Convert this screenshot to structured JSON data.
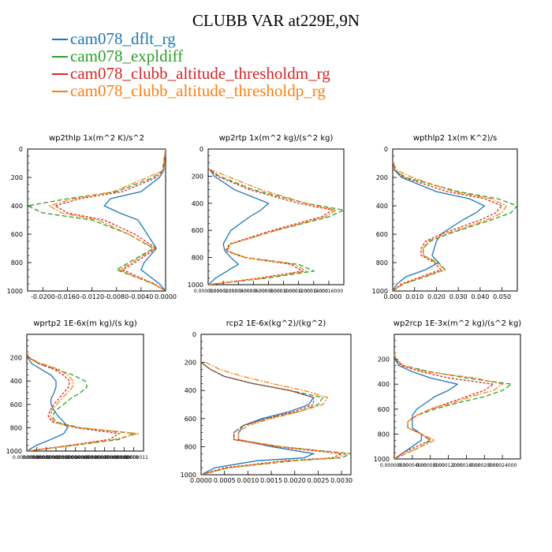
{
  "figure": {
    "title": "CLUBB VAR at229E,9N",
    "legend": [
      {
        "label": "cam078_dflt_rg",
        "color": "#1f77b4"
      },
      {
        "label": "cam078_expldiff",
        "color": "#2ca02c"
      },
      {
        "label": "cam078_clubb_altitude_thresholdm_rg",
        "color": "#d62728"
      },
      {
        "label": "cam078_clubb_altitude_thresholdp_rg",
        "color": "#ff7f0e"
      }
    ]
  },
  "chart_data": [
    {
      "type": "line",
      "title": "wp2thlp   1x(m^2 K)/s^2",
      "xlim": [
        -0.0225,
        0.0
      ],
      "ylim": [
        1000,
        0
      ],
      "xticks": [
        "-0.0200",
        "-0.0160",
        "-0.0120",
        "-0.0080",
        "-0.0040",
        "0.0000"
      ],
      "xtick_values": [
        -0.02,
        -0.016,
        -0.012,
        -0.008,
        -0.004,
        0.0
      ],
      "yticks": [
        "0",
        "200",
        "400",
        "600",
        "800",
        "1000"
      ],
      "ytick_values": [
        0,
        200,
        400,
        600,
        800,
        1000
      ],
      "y": [
        0,
        150,
        200,
        300,
        350,
        400,
        450,
        500,
        600,
        700,
        800,
        850,
        900,
        950,
        1000
      ],
      "series": [
        {
          "name": "cam078_dflt_rg",
          "values": [
            0,
            -0.0003,
            -0.001,
            -0.004,
            -0.009,
            -0.01,
            -0.0075,
            -0.0045,
            -0.003,
            -0.0015,
            -0.0035,
            -0.004,
            -0.0025,
            -0.001,
            0
          ]
        },
        {
          "name": "cam078_expldiff",
          "values": [
            0,
            -0.0005,
            -0.002,
            -0.008,
            -0.016,
            -0.0225,
            -0.02,
            -0.012,
            -0.006,
            -0.002,
            -0.006,
            -0.008,
            -0.005,
            -0.002,
            0
          ]
        },
        {
          "name": "cam078_clubb_altitude_thresholdm_rg",
          "values": [
            0,
            -0.0004,
            -0.0015,
            -0.007,
            -0.014,
            -0.018,
            -0.016,
            -0.01,
            -0.005,
            -0.0015,
            -0.005,
            -0.007,
            -0.0045,
            -0.0018,
            0
          ]
        },
        {
          "name": "cam078_clubb_altitude_thresholdp_rg",
          "values": [
            0,
            -0.0003,
            -0.003,
            -0.0085,
            -0.015,
            -0.019,
            -0.017,
            -0.011,
            -0.006,
            -0.0018,
            -0.0055,
            -0.0075,
            -0.005,
            -0.0019,
            0
          ]
        }
      ]
    },
    {
      "type": "line",
      "title": "wp2rtp   1x(m^2 kg)/(s^2 kg)",
      "xlim": [
        0.0,
        0.00018
      ],
      "ylim": [
        1000,
        0
      ],
      "xticks": [
        "0.00000000",
        "0.00002000",
        "0.00004000",
        "0.00006000",
        "0.00008000",
        "0.00010000",
        "0.00012000",
        "0.00014000",
        "0.00016000"
      ],
      "xtick_values": [
        0,
        2e-05,
        4e-05,
        6e-05,
        8e-05,
        0.0001,
        0.00012,
        0.00014,
        0.00016
      ],
      "yticks": [
        "0",
        "200",
        "400",
        "600",
        "800",
        "1000"
      ],
      "ytick_values": [
        0,
        200,
        400,
        600,
        800,
        1000
      ],
      "y": [
        150,
        200,
        300,
        400,
        450,
        500,
        600,
        700,
        750,
        800,
        850,
        900,
        950,
        1000
      ],
      "series": [
        {
          "name": "cam078_dflt_rg",
          "values": [
            2e-06,
            8e-06,
            3.5e-05,
            8e-05,
            7e-05,
            5.5e-05,
            3e-05,
            2e-05,
            2.2e-05,
            3e-05,
            4e-05,
            2.5e-05,
            1e-05,
            5e-07
          ]
        },
        {
          "name": "cam078_expldiff",
          "values": [
            2e-06,
            1.5e-05,
            6e-05,
            0.00013,
            0.00018,
            0.00016,
            9e-05,
            3e-05,
            2.5e-05,
            5e-05,
            0.00012,
            0.00014,
            8e-05,
            5e-07
          ]
        },
        {
          "name": "cam078_clubb_altitude_thresholdm_rg",
          "values": [
            2e-06,
            1.2e-05,
            5.5e-05,
            0.00012,
            0.000165,
            0.00015,
            8.5e-05,
            2.8e-05,
            2.3e-05,
            4.8e-05,
            0.00011,
            0.000125,
            7e-05,
            5e-07
          ]
        },
        {
          "name": "cam078_clubb_altitude_thresholdp_rg",
          "values": [
            2e-06,
            2.5e-05,
            7e-05,
            0.00013,
            0.00017,
            0.000155,
            9e-05,
            3e-05,
            2.4e-05,
            5e-05,
            0.000115,
            0.00013,
            7.5e-05,
            5e-07
          ]
        }
      ]
    },
    {
      "type": "line",
      "title": "wpthlp2   1x(m K^2)/s",
      "xlim": [
        0.0,
        0.057
      ],
      "ylim": [
        1000,
        0
      ],
      "xticks": [
        "0.000",
        "0.010",
        "0.020",
        "0.030",
        "0.040",
        "0.050"
      ],
      "xtick_values": [
        0,
        0.01,
        0.02,
        0.03,
        0.04,
        0.05
      ],
      "yticks": [
        "0",
        "200",
        "400",
        "600",
        "800",
        "1000"
      ],
      "ytick_values": [
        0,
        200,
        400,
        600,
        800,
        1000
      ],
      "y": [
        100,
        150,
        200,
        300,
        350,
        400,
        450,
        500,
        600,
        650,
        700,
        750,
        800,
        850,
        900,
        950,
        1000
      ],
      "series": [
        {
          "name": "cam078_dflt_rg",
          "values": [
            0.0002,
            0.001,
            0.004,
            0.02,
            0.035,
            0.042,
            0.038,
            0.032,
            0.022,
            0.02,
            0.019,
            0.018,
            0.021,
            0.015,
            0.006,
            0.002,
            0
          ]
        },
        {
          "name": "cam078_expldiff",
          "values": [
            0.0002,
            0.001,
            0.006,
            0.03,
            0.048,
            0.057,
            0.054,
            0.045,
            0.025,
            0.017,
            0.014,
            0.014,
            0.021,
            0.024,
            0.015,
            0.005,
            0
          ]
        },
        {
          "name": "cam078_clubb_altitude_thresholdm_rg",
          "values": [
            0.0002,
            0.001,
            0.005,
            0.025,
            0.042,
            0.05,
            0.047,
            0.04,
            0.022,
            0.015,
            0.013,
            0.013,
            0.019,
            0.022,
            0.013,
            0.004,
            0
          ]
        },
        {
          "name": "cam078_clubb_altitude_thresholdp_rg",
          "values": [
            0.0002,
            0.002,
            0.009,
            0.028,
            0.045,
            0.052,
            0.05,
            0.043,
            0.024,
            0.016,
            0.014,
            0.014,
            0.02,
            0.024,
            0.014,
            0.005,
            0
          ]
        }
      ]
    },
    {
      "type": "line",
      "title": "wprtp2   1E-6x(m kg)/(s kg)",
      "xlim": [
        0.0,
        1.2e-07
      ],
      "ylim": [
        1000,
        0
      ],
      "xticks": [
        "0.00000000",
        "0.00000001",
        "0.00000002",
        "0.00000003",
        "0.00000004",
        "0.00000005",
        "0.00000006",
        "0.00000007",
        "0.00000008",
        "0.00000009",
        "0.00000010",
        "0.00000011"
      ],
      "xtick_values": [
        0,
        1e-08,
        2e-08,
        3e-08,
        4e-08,
        5e-08,
        6e-08,
        7e-08,
        8e-08,
        9e-08,
        1e-07,
        1.1e-07
      ],
      "yticks": [
        "200",
        "400",
        "600",
        "800",
        "1000"
      ],
      "ytick_values": [
        200,
        400,
        600,
        800,
        1000
      ],
      "y": [
        150,
        200,
        250,
        300,
        350,
        400,
        450,
        500,
        550,
        600,
        650,
        700,
        750,
        800,
        850,
        900,
        950,
        1000
      ],
      "series": [
        {
          "name": "cam078_dflt_rg",
          "values": [
            0,
            1e-09,
            5e-09,
            1.5e-08,
            2.5e-08,
            3e-08,
            3e-08,
            2.8e-08,
            2.5e-08,
            2.5e-08,
            2.8e-08,
            3.2e-08,
            3.8e-08,
            4.2e-08,
            3.8e-08,
            2.5e-08,
            1e-08,
            0
          ]
        },
        {
          "name": "cam078_expldiff",
          "values": [
            0,
            2e-09,
            1.2e-08,
            3e-08,
            4.8e-08,
            6e-08,
            6.2e-08,
            5.5e-08,
            4.5e-08,
            3.8e-08,
            3e-08,
            2.6e-08,
            3e-08,
            5.5e-08,
            1.1e-07,
            9.5e-08,
            5e-08,
            0
          ]
        },
        {
          "name": "cam078_clubb_altitude_thresholdm_rg",
          "values": [
            0,
            2e-09,
            1.2e-08,
            2.8e-08,
            3.8e-08,
            4.4e-08,
            4.3e-08,
            3.8e-08,
            3.3e-08,
            2.8e-08,
            2.4e-08,
            2.2e-08,
            2.6e-08,
            5e-08,
            9.5e-08,
            8.5e-08,
            4.5e-08,
            0
          ]
        },
        {
          "name": "cam078_clubb_altitude_thresholdp_rg",
          "values": [
            0,
            2e-09,
            1.5e-08,
            3.3e-08,
            4.2e-08,
            4.8e-08,
            4.7e-08,
            4.2e-08,
            3.6e-08,
            3.1e-08,
            2.6e-08,
            2.4e-08,
            2.8e-08,
            5.3e-08,
            1.15e-07,
            9e-08,
            4.8e-08,
            0
          ]
        }
      ]
    },
    {
      "type": "line",
      "title": "rcp2   1E-6x(kg^2)/(kg^2)",
      "xlim": [
        0.0,
        0.0032
      ],
      "ylim": [
        1000,
        0
      ],
      "xticks": [
        "0.0000",
        "0.0005",
        "0.0010",
        "0.0015",
        "0.0020",
        "0.0025",
        "0.0030"
      ],
      "xtick_values": [
        0,
        0.0005,
        0.001,
        0.0015,
        0.002,
        0.0025,
        0.003
      ],
      "yticks": [
        "0",
        "200",
        "400",
        "600",
        "800",
        "1000"
      ],
      "ytick_values": [
        0,
        200,
        400,
        600,
        800,
        1000
      ],
      "y": [
        200,
        250,
        300,
        350,
        400,
        450,
        500,
        550,
        600,
        650,
        700,
        750,
        800,
        850,
        880,
        900,
        950,
        1000
      ],
      "series": [
        {
          "name": "cam078_dflt_rg",
          "values": [
            0,
            0.0002,
            0.0005,
            0.0011,
            0.0019,
            0.0024,
            0.0023,
            0.0019,
            0.0013,
            0.0009,
            0.0008,
            0.0008,
            0.0015,
            0.0024,
            0.0022,
            0.0012,
            0.0003,
            0
          ]
        },
        {
          "name": "cam078_expldiff",
          "values": [
            0,
            0.0002,
            0.0005,
            0.0011,
            0.0019,
            0.0026,
            0.0025,
            0.0021,
            0.0014,
            0.0009,
            0.0007,
            0.0007,
            0.0017,
            0.0032,
            0.003,
            0.002,
            0.0006,
            0
          ]
        },
        {
          "name": "cam078_clubb_altitude_thresholdm_rg",
          "values": [
            0,
            0.0002,
            0.0005,
            0.0011,
            0.0019,
            0.0024,
            0.0024,
            0.002,
            0.0014,
            0.0009,
            0.0007,
            0.0007,
            0.0016,
            0.003,
            0.0028,
            0.0018,
            0.0005,
            0
          ]
        },
        {
          "name": "cam078_clubb_altitude_thresholdp_rg",
          "values": [
            0.0001,
            0.0004,
            0.0009,
            0.0015,
            0.0022,
            0.0027,
            0.0026,
            0.0021,
            0.0015,
            0.001,
            0.0008,
            0.0008,
            0.0017,
            0.0031,
            0.0029,
            0.0019,
            0.0006,
            0
          ]
        }
      ]
    },
    {
      "type": "line",
      "title": "wp2rcp   1E-3x(m^2 kg)/(s^2 kg)",
      "xlim": [
        0.0,
        0.00028
      ],
      "ylim": [
        1000,
        0
      ],
      "xticks": [
        "0.00000000",
        "0.00004000",
        "0.00008000",
        "0.00012000",
        "0.00016000",
        "0.00020000",
        "0.00024000"
      ],
      "xtick_values": [
        0,
        4e-05,
        8e-05,
        0.00012,
        0.00016,
        0.0002,
        0.00024
      ],
      "yticks": [
        "200",
        "400",
        "600",
        "800",
        "1000"
      ],
      "ytick_values": [
        200,
        400,
        600,
        800,
        1000
      ],
      "y": [
        150,
        200,
        250,
        300,
        350,
        400,
        450,
        500,
        550,
        600,
        650,
        700,
        750,
        800,
        850,
        900,
        950,
        1000
      ],
      "series": [
        {
          "name": "cam078_dflt_rg",
          "values": [
            0,
            2e-06,
            1e-05,
            4e-05,
            8e-05,
            0.00014,
            0.00012,
            9e-05,
            7e-05,
            5e-05,
            4e-05,
            4e-05,
            4e-05,
            6e-05,
            6e-05,
            4e-05,
            2e-05,
            0
          ]
        },
        {
          "name": "cam078_expldiff",
          "values": [
            0,
            3e-06,
            2e-05,
            8e-05,
            0.00016,
            0.00026,
            0.00024,
            0.0002,
            0.00014,
            9e-05,
            5e-05,
            3e-05,
            3e-05,
            6e-05,
            8e-05,
            6e-05,
            3e-05,
            0
          ]
        },
        {
          "name": "cam078_clubb_altitude_thresholdm_rg",
          "values": [
            0,
            3e-06,
            1.5e-05,
            6e-05,
            0.00012,
            0.00022,
            0.0002,
            0.00016,
            0.00012,
            8e-05,
            5e-05,
            3e-05,
            3e-05,
            6e-05,
            8e-05,
            5e-05,
            2e-05,
            0
          ]
        },
        {
          "name": "cam078_clubb_altitude_thresholdp_rg",
          "values": [
            0,
            4e-06,
            2e-05,
            7e-05,
            0.00018,
            0.00024,
            0.00022,
            0.00017,
            0.00013,
            8e-05,
            5e-05,
            3e-05,
            3e-05,
            6e-05,
            9e-05,
            6e-05,
            3e-05,
            0
          ]
        }
      ]
    }
  ]
}
